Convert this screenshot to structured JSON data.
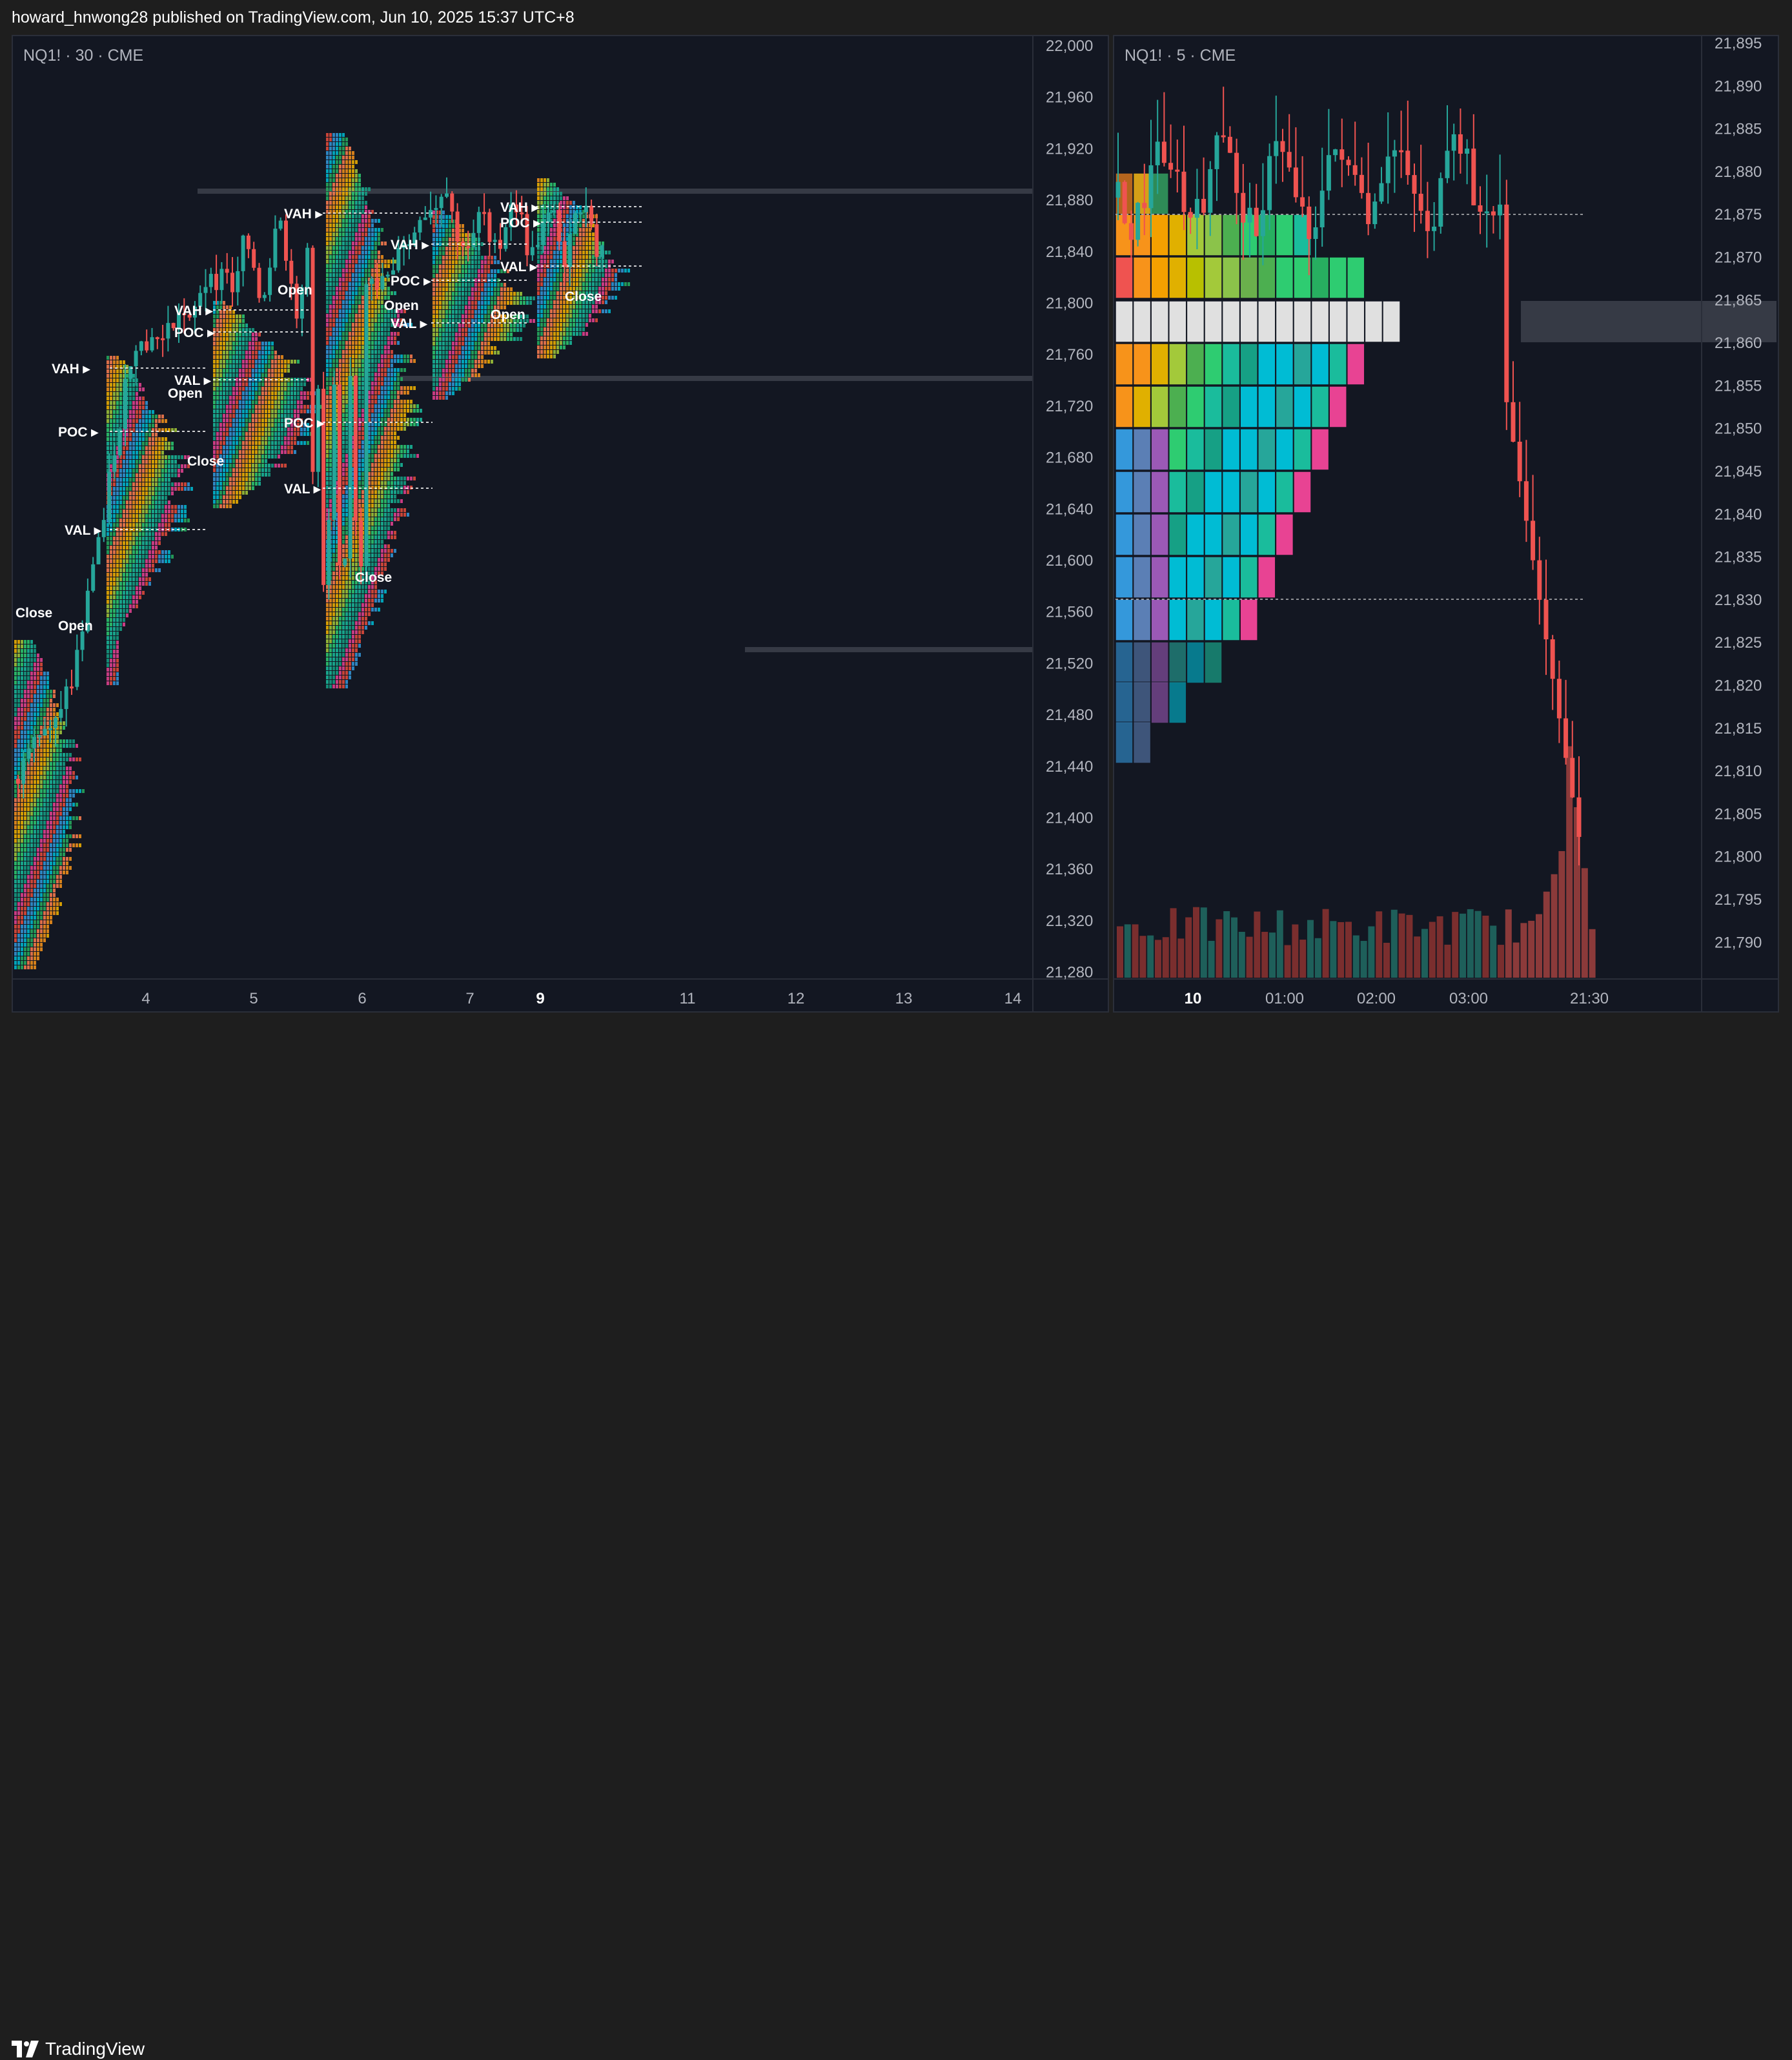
{
  "header": {
    "publisher_line": "howard_hnwong28 published on TradingView.com, Jun 10, 2025 15:37 UTC+8"
  },
  "footer": {
    "brand": "TradingView",
    "logo_icon": "tradingview-logo-icon"
  },
  "left_chart": {
    "symbol_label": "NQ1! · 30 · CME",
    "price_axis": [
      "22,000",
      "21,960",
      "21,920",
      "21,880",
      "21,840",
      "21,800",
      "21,760",
      "21,720",
      "21,680",
      "21,640",
      "21,600",
      "21,560",
      "21,520",
      "21,480",
      "21,440",
      "21,400",
      "21,360",
      "21,320",
      "21,280"
    ],
    "time_axis": [
      {
        "label": "4",
        "bold": false
      },
      {
        "label": "5",
        "bold": false
      },
      {
        "label": "6",
        "bold": false
      },
      {
        "label": "7",
        "bold": false
      },
      {
        "label": "9",
        "bold": true
      },
      {
        "label": "11",
        "bold": false
      },
      {
        "label": "12",
        "bold": false
      },
      {
        "label": "13",
        "bold": false
      },
      {
        "label": "14",
        "bold": false
      }
    ],
    "session_labels": {
      "vah": "VAH",
      "poc": "POC",
      "val": "VAL",
      "open": "Open",
      "close": "Close"
    }
  },
  "right_chart": {
    "symbol_label": "NQ1! · 5 · CME",
    "price_axis": [
      "21,895",
      "21,890",
      "21,885",
      "21,880",
      "21,875",
      "21,870",
      "21,865",
      "21,860",
      "21,855",
      "21,850",
      "21,845",
      "21,840",
      "21,835",
      "21,830",
      "21,825",
      "21,820",
      "21,815",
      "21,810",
      "21,805",
      "21,800",
      "21,795",
      "21,790"
    ],
    "time_axis": [
      {
        "label": "10",
        "bold": true
      },
      {
        "label": "01:00",
        "bold": false
      },
      {
        "label": "02:00",
        "bold": false
      },
      {
        "label": "03:00",
        "bold": false
      },
      {
        "label": "21:30",
        "bold": false
      }
    ]
  },
  "colors": {
    "background": "#131722",
    "up": "#26a69a",
    "down": "#ef5350",
    "poc_band": "#363a45",
    "grid_border": "#2a2e39"
  }
}
